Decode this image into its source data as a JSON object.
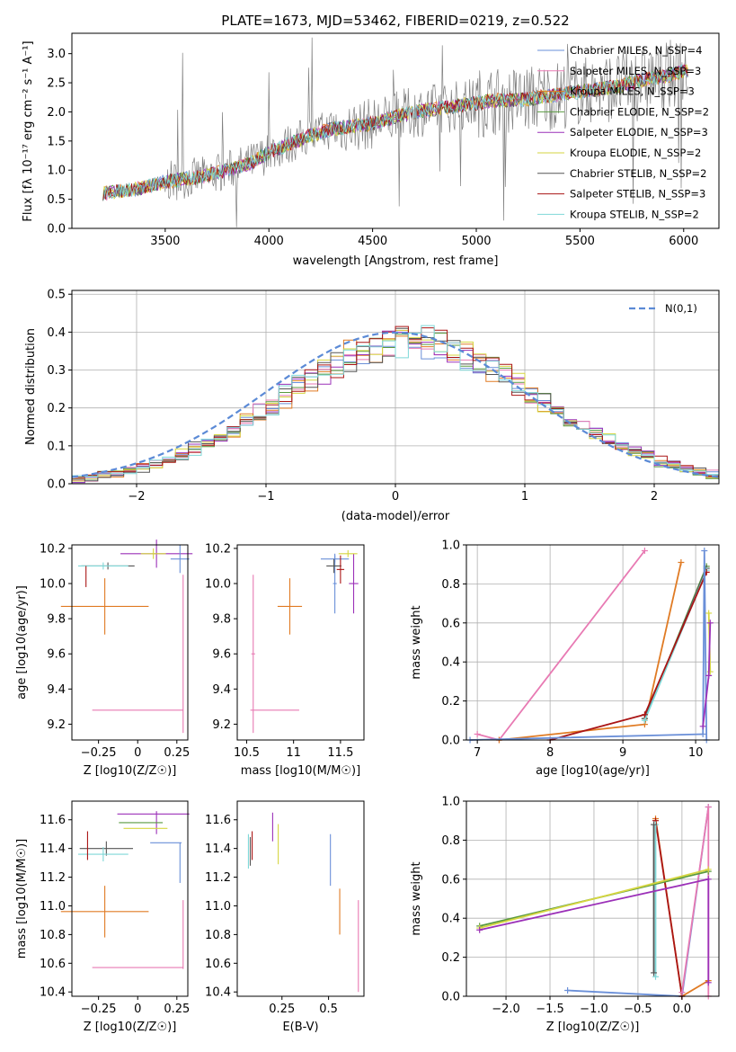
{
  "page_title": "PLATE=1673, MJD=53462, FIBERID=0219, z=0.522",
  "colors": {
    "Chabrier MILES": "#6a8fd8",
    "Salpeter MILES": "#e87ab3",
    "Kroupa MILES": "#e07b24",
    "Chabrier ELODIE": "#5a9a40",
    "Salpeter ELODIE": "#9b30b8",
    "Kroupa ELODIE": "#d6d640",
    "Chabrier STELIB": "#555555",
    "Salpeter STELIB": "#aa1515",
    "Kroupa STELIB": "#7fd8d8",
    "gauss": "#5b8ad6",
    "spectrum_data": "#808080"
  },
  "chart_data": [
    {
      "id": "spectrum",
      "type": "line",
      "title": "PLATE=1673, MJD=53462, FIBERID=0219, z=0.522",
      "xlabel": "wavelength [Angstrom, rest frame]",
      "ylabel": "Flux [fλ 10⁻¹⁷ erg cm⁻² s⁻¹ A⁻¹]",
      "xlim": [
        3050,
        6170
      ],
      "ylim": [
        0,
        3.35
      ],
      "xticks": [
        3500,
        4000,
        4500,
        5000,
        5500,
        6000
      ],
      "yticks": [
        0.0,
        0.5,
        1.0,
        1.5,
        2.0,
        2.5,
        3.0
      ],
      "legend": [
        "Chabrier MILES, N_SSP=4",
        "Salpeter MILES, N_SSP=3",
        "Kroupa MILES, N_SSP=3",
        "Chabrier ELODIE, N_SSP=2",
        "Salpeter ELODIE, N_SSP=3",
        "Kroupa ELODIE, N_SSP=2",
        "Chabrier STELIB, N_SSP=2",
        "Salpeter STELIB, N_SSP=3",
        "Kroupa STELIB, N_SSP=2"
      ],
      "legend_placement": "right",
      "continuum_x": [
        3200,
        3300,
        3400,
        3500,
        3600,
        3700,
        3800,
        3900,
        4000,
        4100,
        4200,
        4300,
        4400,
        4500,
        4600,
        4700,
        4800,
        4900,
        5000,
        5100,
        5200,
        5300,
        5400,
        5500,
        5600,
        5700,
        5800,
        5900,
        6000
      ],
      "continuum_y": [
        0.6,
        0.65,
        0.7,
        0.8,
        0.85,
        0.9,
        1.0,
        1.1,
        1.3,
        1.45,
        1.6,
        1.7,
        1.75,
        1.8,
        1.9,
        2.0,
        2.05,
        2.1,
        2.15,
        2.2,
        2.2,
        2.25,
        2.3,
        2.35,
        2.4,
        2.45,
        2.55,
        2.6,
        2.7
      ]
    },
    {
      "id": "residuals",
      "type": "line",
      "xlabel": "(data-model)/error",
      "ylabel": "Normed distribution",
      "xlim": [
        -2.5,
        2.5
      ],
      "ylim": [
        0,
        0.51
      ],
      "xticks": [
        -2,
        -1,
        0,
        1,
        2
      ],
      "yticks": [
        0.0,
        0.1,
        0.2,
        0.3,
        0.4,
        0.5
      ],
      "grid": true,
      "legend": [
        "N(0,1)"
      ],
      "legend_placement": "top-right"
    },
    {
      "id": "age_vs_Z",
      "type": "scatter",
      "xlabel": "Z [log10(Z/Z☉)]",
      "ylabel": "age [log10(age/yr)]",
      "xlim": [
        -0.42,
        0.32
      ],
      "ylim": [
        9.11,
        10.22
      ],
      "xticks": [
        -0.25,
        0.0,
        0.25
      ],
      "yticks": [
        9.2,
        9.4,
        9.6,
        9.8,
        10.0,
        10.2
      ],
      "points": [
        {
          "x": -0.21,
          "xe": 0.28,
          "y": 9.87,
          "ye": 0.16,
          "series": "Kroupa MILES"
        },
        {
          "x": 0.29,
          "xe": 0.0,
          "y": 9.6,
          "ye": 0.45,
          "series": "Salpeter MILES"
        },
        {
          "x": 0.0,
          "xe": 0.29,
          "y": 9.28,
          "ye": 0.0,
          "series": "Salpeter MILES"
        },
        {
          "x": 0.12,
          "xe": 0.23,
          "y": 10.17,
          "ye": 0.08,
          "series": "Salpeter ELODIE"
        },
        {
          "x": 0.27,
          "xe": 0.06,
          "y": 10.14,
          "ye": 0.08,
          "series": "Chabrier MILES"
        },
        {
          "x": -0.19,
          "xe": 0.17,
          "y": 10.1,
          "ye": 0.02,
          "series": "Chabrier STELIB"
        },
        {
          "x": -0.22,
          "xe": 0.16,
          "y": 10.1,
          "ye": 0.02,
          "series": "Kroupa STELIB"
        },
        {
          "x": -0.33,
          "xe": 0.0,
          "y": 10.04,
          "ye": 0.06,
          "series": "Salpeter STELIB"
        },
        {
          "x": 0.1,
          "xe": 0.08,
          "y": 10.17,
          "ye": 0.03,
          "series": "Kroupa ELODIE"
        }
      ]
    },
    {
      "id": "age_vs_mass",
      "type": "scatter",
      "xlabel": "mass [log10(M/M☉)]",
      "ylabel": "",
      "xlim": [
        10.4,
        11.75
      ],
      "ylim": [
        9.11,
        10.22
      ],
      "xticks": [
        10.5,
        11.0,
        11.5
      ],
      "yticks": [
        9.2,
        9.4,
        9.6,
        9.8,
        10.0,
        10.2
      ],
      "points": [
        {
          "x": 10.96,
          "xe": 0.13,
          "y": 9.87,
          "ye": 0.16,
          "series": "Kroupa MILES"
        },
        {
          "x": 10.57,
          "xe": 0.02,
          "y": 9.6,
          "ye": 0.45,
          "series": "Salpeter MILES"
        },
        {
          "x": 10.8,
          "xe": 0.26,
          "y": 9.28,
          "ye": 0.0,
          "series": "Salpeter MILES"
        },
        {
          "x": 11.44,
          "xe": 0.15,
          "y": 10.14,
          "ye": 0.02,
          "series": "Chabrier MILES"
        },
        {
          "x": 11.44,
          "xe": 0.02,
          "y": 10.0,
          "ye": 0.17,
          "series": "Chabrier MILES"
        },
        {
          "x": 11.43,
          "xe": 0.08,
          "y": 10.1,
          "ye": 0.04,
          "series": "Chabrier STELIB"
        },
        {
          "x": 11.5,
          "xe": 0.04,
          "y": 10.08,
          "ye": 0.08,
          "series": "Salpeter STELIB"
        },
        {
          "x": 11.64,
          "xe": 0.05,
          "y": 10.0,
          "ye": 0.17,
          "series": "Salpeter ELODIE"
        },
        {
          "x": 11.58,
          "xe": 0.1,
          "y": 10.17,
          "ye": 0.02,
          "series": "Kroupa ELODIE"
        }
      ]
    },
    {
      "id": "massweight_vs_age",
      "type": "line",
      "xlabel": "age  [log10(age/yr)]",
      "ylabel": "mass weight",
      "xlim": [
        6.85,
        10.32
      ],
      "ylim": [
        0,
        1.0
      ],
      "xticks": [
        7,
        8,
        9,
        10
      ],
      "yticks": [
        0.0,
        0.2,
        0.4,
        0.6,
        0.8,
        1.0
      ],
      "grid": true,
      "series": [
        {
          "series": "Salpeter MILES",
          "x": [
            7.0,
            7.3,
            9.3
          ],
          "y": [
            0.03,
            0.0,
            0.97
          ]
        },
        {
          "series": "Kroupa MILES",
          "x": [
            7.3,
            9.3,
            9.8
          ],
          "y": [
            0.0,
            0.08,
            0.91
          ]
        },
        {
          "series": "Chabrier ELODIE",
          "x": [
            9.3,
            10.15
          ],
          "y": [
            0.11,
            0.89
          ]
        },
        {
          "series": "Chabrier STELIB",
          "x": [
            9.3,
            10.15
          ],
          "y": [
            0.11,
            0.88
          ]
        },
        {
          "series": "Kroupa STELIB",
          "x": [
            9.3,
            10.15
          ],
          "y": [
            0.1,
            0.87
          ]
        },
        {
          "series": "Salpeter STELIB",
          "x": [
            8.0,
            9.3,
            10.15
          ],
          "y": [
            0.0,
            0.13,
            0.86
          ]
        },
        {
          "series": "Chabrier MILES",
          "x": [
            6.9,
            10.1,
            10.12,
            10.15
          ],
          "y": [
            0.0,
            0.03,
            0.97,
            0.0
          ]
        },
        {
          "series": "Kroupa ELODIE",
          "x": [
            10.18,
            10.2
          ],
          "y": [
            0.65,
            0.35
          ]
        },
        {
          "series": "Salpeter ELODIE",
          "x": [
            10.1,
            10.18,
            10.2
          ],
          "y": [
            0.07,
            0.33,
            0.6
          ]
        }
      ]
    },
    {
      "id": "mass_vs_Z",
      "type": "scatter",
      "xlabel": "Z [log10(Z/Z☉)]",
      "ylabel": "mass [log10(M/M☉)]",
      "xlim": [
        -0.42,
        0.32
      ],
      "ylim": [
        10.37,
        11.73
      ],
      "xticks": [
        -0.25,
        0.0,
        0.25
      ],
      "yticks": [
        10.4,
        10.6,
        10.8,
        11.0,
        11.2,
        11.4,
        11.6
      ],
      "points": [
        {
          "x": -0.21,
          "xe": 0.28,
          "y": 10.96,
          "ye": 0.18,
          "series": "Kroupa MILES"
        },
        {
          "x": 0.29,
          "xe": 0.0,
          "y": 10.8,
          "ye": 0.24,
          "series": "Salpeter MILES"
        },
        {
          "x": 0.0,
          "xe": 0.29,
          "y": 10.57,
          "ye": 0.0,
          "series": "Salpeter MILES"
        },
        {
          "x": 0.1,
          "xe": 0.23,
          "y": 11.64,
          "ye": 0.0,
          "series": "Salpeter ELODIE"
        },
        {
          "x": 0.12,
          "xe": 0.0,
          "y": 11.58,
          "ye": 0.08,
          "series": "Salpeter ELODIE"
        },
        {
          "x": 0.27,
          "xe": 0.0,
          "y": 11.3,
          "ye": 0.14,
          "series": "Chabrier MILES"
        },
        {
          "x": 0.18,
          "xe": 0.1,
          "y": 11.44,
          "ye": 0.0,
          "series": "Chabrier MILES"
        },
        {
          "x": -0.2,
          "xe": 0.17,
          "y": 11.4,
          "ye": 0.05,
          "series": "Chabrier STELIB"
        },
        {
          "x": -0.22,
          "xe": 0.16,
          "y": 11.36,
          "ye": 0.05,
          "series": "Kroupa STELIB"
        },
        {
          "x": -0.32,
          "xe": 0.0,
          "y": 11.42,
          "ye": 0.1,
          "series": "Salpeter STELIB"
        },
        {
          "x": 0.05,
          "xe": 0.14,
          "y": 11.54,
          "ye": 0.0,
          "series": "Kroupa ELODIE"
        },
        {
          "x": 0.02,
          "xe": 0.14,
          "y": 11.58,
          "ye": 0.0,
          "series": "Chabrier ELODIE"
        }
      ]
    },
    {
      "id": "mass_vs_ebv",
      "type": "scatter",
      "xlabel": "E(B-V)",
      "ylabel": "",
      "xlim": [
        0.01,
        0.69
      ],
      "ylim": [
        10.37,
        11.73
      ],
      "xticks": [
        0.25,
        0.5
      ],
      "yticks": [
        10.4,
        10.6,
        10.8,
        11.0,
        11.2,
        11.4,
        11.6
      ],
      "points": [
        {
          "x": 0.56,
          "xe": 0.0,
          "y": 10.96,
          "ye": 0.16,
          "series": "Kroupa MILES"
        },
        {
          "x": 0.66,
          "xe": 0.0,
          "y": 10.72,
          "ye": 0.32,
          "series": "Salpeter MILES"
        },
        {
          "x": 0.51,
          "xe": 0.0,
          "y": 11.32,
          "ye": 0.18,
          "series": "Chabrier MILES"
        },
        {
          "x": 0.2,
          "xe": 0.0,
          "y": 11.55,
          "ye": 0.1,
          "series": "Salpeter ELODIE"
        },
        {
          "x": 0.23,
          "xe": 0.0,
          "y": 11.43,
          "ye": 0.14,
          "series": "Kroupa ELODIE"
        },
        {
          "x": 0.07,
          "xe": 0.0,
          "y": 11.38,
          "ye": 0.12,
          "series": "Kroupa STELIB"
        },
        {
          "x": 0.09,
          "xe": 0.0,
          "y": 11.42,
          "ye": 0.1,
          "series": "Salpeter STELIB"
        },
        {
          "x": 0.08,
          "xe": 0.0,
          "y": 11.38,
          "ye": 0.1,
          "series": "Chabrier STELIB"
        }
      ]
    },
    {
      "id": "massweight_vs_Z",
      "type": "line",
      "xlabel": "Z [log10(Z/Z☉)]",
      "ylabel": "mass weight",
      "xlim": [
        -2.45,
        0.42
      ],
      "ylim": [
        0,
        1.0
      ],
      "xticks": [
        -2.0,
        -1.5,
        -1.0,
        -0.5,
        0.0
      ],
      "yticks": [
        0.0,
        0.2,
        0.4,
        0.6,
        0.8,
        1.0
      ],
      "grid": true,
      "series": [
        {
          "series": "Chabrier MILES",
          "x": [
            -1.3,
            0.0,
            0.3
          ],
          "y": [
            0.03,
            0.0,
            0.97
          ]
        },
        {
          "series": "Kroupa MILES",
          "x": [
            -0.3,
            0.0,
            0.3
          ],
          "y": [
            0.91,
            0.0,
            0.08
          ]
        },
        {
          "series": "Salpeter STELIB",
          "x": [
            -0.3,
            0.0
          ],
          "y": [
            0.9,
            0.0
          ]
        },
        {
          "series": "Kroupa STELIB",
          "x": [
            -0.3,
            -0.3
          ],
          "y": [
            0.1,
            0.88
          ]
        },
        {
          "series": "Chabrier STELIB",
          "x": [
            -0.32,
            -0.32
          ],
          "y": [
            0.12,
            0.88
          ]
        },
        {
          "series": "Salpeter MILES",
          "x": [
            0.0,
            0.3,
            0.3
          ],
          "y": [
            0.02,
            0.97,
            0.0
          ]
        },
        {
          "series": "Chabrier ELODIE",
          "x": [
            -2.3,
            0.3
          ],
          "y": [
            0.36,
            0.64
          ]
        },
        {
          "series": "Kroupa ELODIE",
          "x": [
            -2.3,
            0.3
          ],
          "y": [
            0.35,
            0.65
          ]
        },
        {
          "series": "Salpeter ELODIE",
          "x": [
            -2.3,
            0.3,
            0.3
          ],
          "y": [
            0.34,
            0.6,
            0.07
          ]
        }
      ]
    }
  ]
}
